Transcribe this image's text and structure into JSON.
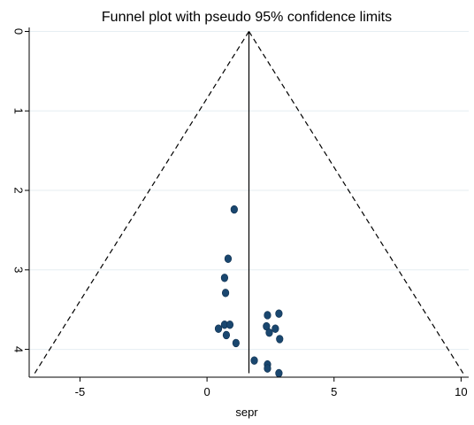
{
  "chart_data": {
    "type": "scatter",
    "title": "Funnel plot with pseudo 95% confidence limits",
    "xlabel": "sepr",
    "ylabel": "",
    "xlim": [
      -7.0,
      10.3
    ],
    "ylim": [
      4.35,
      -0.05
    ],
    "y_reversed": true,
    "grid": true,
    "xticks": [
      -5,
      0,
      5,
      10
    ],
    "yticks": [
      0,
      1,
      2,
      3,
      4
    ],
    "xtick_labels": [
      "-5",
      "0",
      "5",
      "10"
    ],
    "ytick_labels": [
      "0",
      "1",
      "2",
      "3",
      "4"
    ],
    "reference_line": {
      "x": 1.65,
      "y_from": 0,
      "y_to": 4.3
    },
    "confidence_limits": [
      {
        "x": [
          1.65,
          -6.78
        ],
        "y": [
          0,
          4.3
        ]
      },
      {
        "x": [
          1.65,
          10.08
        ],
        "y": [
          0,
          4.3
        ]
      }
    ],
    "points": [
      {
        "x": 1.07,
        "y": 2.24
      },
      {
        "x": 0.83,
        "y": 2.86
      },
      {
        "x": 0.69,
        "y": 3.1
      },
      {
        "x": 0.73,
        "y": 3.29
      },
      {
        "x": 0.45,
        "y": 3.74
      },
      {
        "x": 0.69,
        "y": 3.69
      },
      {
        "x": 0.9,
        "y": 3.69
      },
      {
        "x": 0.76,
        "y": 3.82
      },
      {
        "x": 1.14,
        "y": 3.92
      },
      {
        "x": 2.38,
        "y": 3.57
      },
      {
        "x": 2.83,
        "y": 3.55
      },
      {
        "x": 2.34,
        "y": 3.71
      },
      {
        "x": 2.69,
        "y": 3.74
      },
      {
        "x": 2.45,
        "y": 3.79
      },
      {
        "x": 2.86,
        "y": 3.87
      },
      {
        "x": 1.86,
        "y": 4.14
      },
      {
        "x": 2.38,
        "y": 4.19
      },
      {
        "x": 2.38,
        "y": 4.24
      },
      {
        "x": 2.83,
        "y": 4.3
      }
    ],
    "colors": {
      "background": "#ffffff",
      "grid": "#e6eef2",
      "axis": "#000000",
      "marker": "#1a476f",
      "marker_edge": "#10304f"
    }
  }
}
